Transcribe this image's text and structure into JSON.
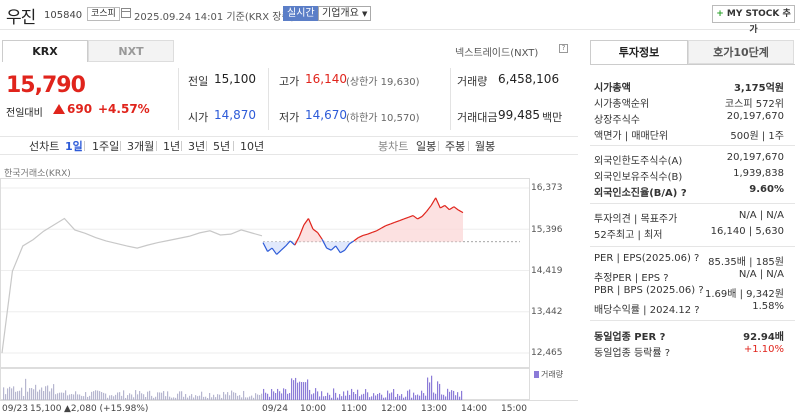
{
  "header": {
    "name": "우진",
    "code": "105840",
    "market": "코스피",
    "datetime": "2025.09.24 14:01 기준(KRX 장중)",
    "realtime": "실시간",
    "company_info": "기업개요",
    "mystock": "MY STOCK 추가"
  },
  "tabs": {
    "krx": "KRX",
    "nxt": "NXT",
    "nxt_link": "넥스트레이드(NXT)"
  },
  "quote": {
    "price": "15,790",
    "change_label": "전일대비",
    "change": "690",
    "change_pct": "+4.57%",
    "prev_label": "전일",
    "prev": "15,100",
    "high_label": "고가",
    "high": "16,140",
    "upper_limit": "(상한가 19,630)",
    "volume_label": "거래량",
    "volume": "6,458,106",
    "open_label": "시가",
    "open": "14,870",
    "low_label": "저가",
    "low": "14,670",
    "lower_limit": "(하한가 10,570)",
    "amount_label": "거래대금",
    "amount": "99,485",
    "amount_unit": "백만"
  },
  "toolbar": {
    "line": "선차트",
    "periods": [
      "1일",
      "1주일",
      "3개월",
      "1년",
      "3년",
      "5년",
      "10년"
    ],
    "candle": "봉차트",
    "candles": [
      "일봉",
      "주봉",
      "월봉"
    ]
  },
  "chart": {
    "exchange": "한국거래소(KRX)",
    "yticks": [
      "16,373",
      "15,396",
      "14,419",
      "13,442",
      "12,465"
    ],
    "vol_legend": "거래량",
    "footer_date": "09/23",
    "footer_close": "15,100",
    "footer_change": "▲2,080 (+15.98%)",
    "xlabels": [
      "09/24",
      "10:00",
      "11:00",
      "12:00",
      "13:00",
      "14:00",
      "15:00"
    ]
  },
  "chart_data": {
    "type": "line",
    "title": "",
    "xlabel": "",
    "ylabel": "",
    "ylim": [
      12465,
      16373
    ],
    "baseline": 15100,
    "series": [
      {
        "values": [
          12465,
          14400,
          15000,
          15150,
          15350,
          15500,
          15650,
          15380,
          15300,
          15200,
          15120,
          15060,
          15000,
          14950,
          15020,
          15080,
          15130,
          15180,
          15230,
          15310,
          15360,
          15260,
          15280,
          15380,
          15310,
          15240
        ]
      },
      {
        "values": [
          15080,
          14870,
          14950,
          14800,
          14900,
          15000,
          15120,
          15020,
          15230,
          15500,
          15650,
          15400,
          15320,
          15160,
          14950,
          14900,
          15000,
          14840,
          14900,
          15050,
          15120,
          15200,
          15250,
          15280,
          15320,
          15360,
          15420,
          15480,
          15520,
          15560,
          15600,
          15640,
          15680,
          15720,
          15640,
          15700,
          15820,
          15960,
          16140,
          15900,
          15960,
          15860,
          15930,
          15850,
          15790
        ]
      }
    ]
  }
}
